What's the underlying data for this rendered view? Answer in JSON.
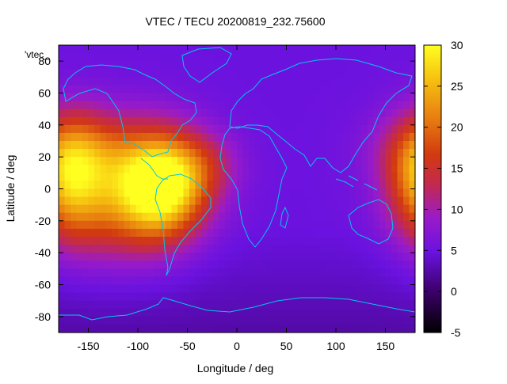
{
  "chart_data": {
    "type": "heatmap",
    "title": "VTEC / TECU 20200819_232.75600",
    "xlabel": "Longitude / deg",
    "ylabel": "Latitude / deg",
    "key_label": "'vtec_",
    "xlim": [
      -180,
      180
    ],
    "ylim": [
      -90,
      90
    ],
    "x_ticks": [
      "-150",
      "-100",
      "-50",
      "0",
      "50",
      "100",
      "150"
    ],
    "x_tick_values": [
      -150,
      -100,
      -50,
      0,
      50,
      100,
      150
    ],
    "y_ticks": [
      "80",
      "60",
      "40",
      "20",
      "0",
      "-20",
      "-40",
      "-60",
      "-80"
    ],
    "y_tick_values": [
      80,
      60,
      40,
      20,
      0,
      -20,
      -40,
      -60,
      -80
    ],
    "colorbar": {
      "range": [
        -5,
        30
      ],
      "ticks": [
        "30",
        "25",
        "20",
        "15",
        "10",
        "5",
        "0",
        "-5"
      ],
      "tick_values": [
        30,
        25,
        20,
        15,
        10,
        5,
        0,
        -5
      ],
      "palette": "black-purple-red-orange-yellow"
    },
    "grid": false,
    "regions": [
      {
        "lon": -75,
        "lat": 3,
        "slon": 30,
        "slat": 22,
        "amp": 24
      },
      {
        "lon": -120,
        "lat": -5,
        "slon": 45,
        "slat": 28,
        "amp": 12
      },
      {
        "lon": -160,
        "lat": 25,
        "slon": 40,
        "slat": 18,
        "amp": 8
      },
      {
        "lon": -30,
        "lat": 15,
        "slon": 25,
        "slat": 15,
        "amp": 5
      },
      {
        "lon": 190,
        "lat": 5,
        "slon": 25,
        "slat": 25,
        "amp": 14
      }
    ],
    "background_level": 5
  }
}
